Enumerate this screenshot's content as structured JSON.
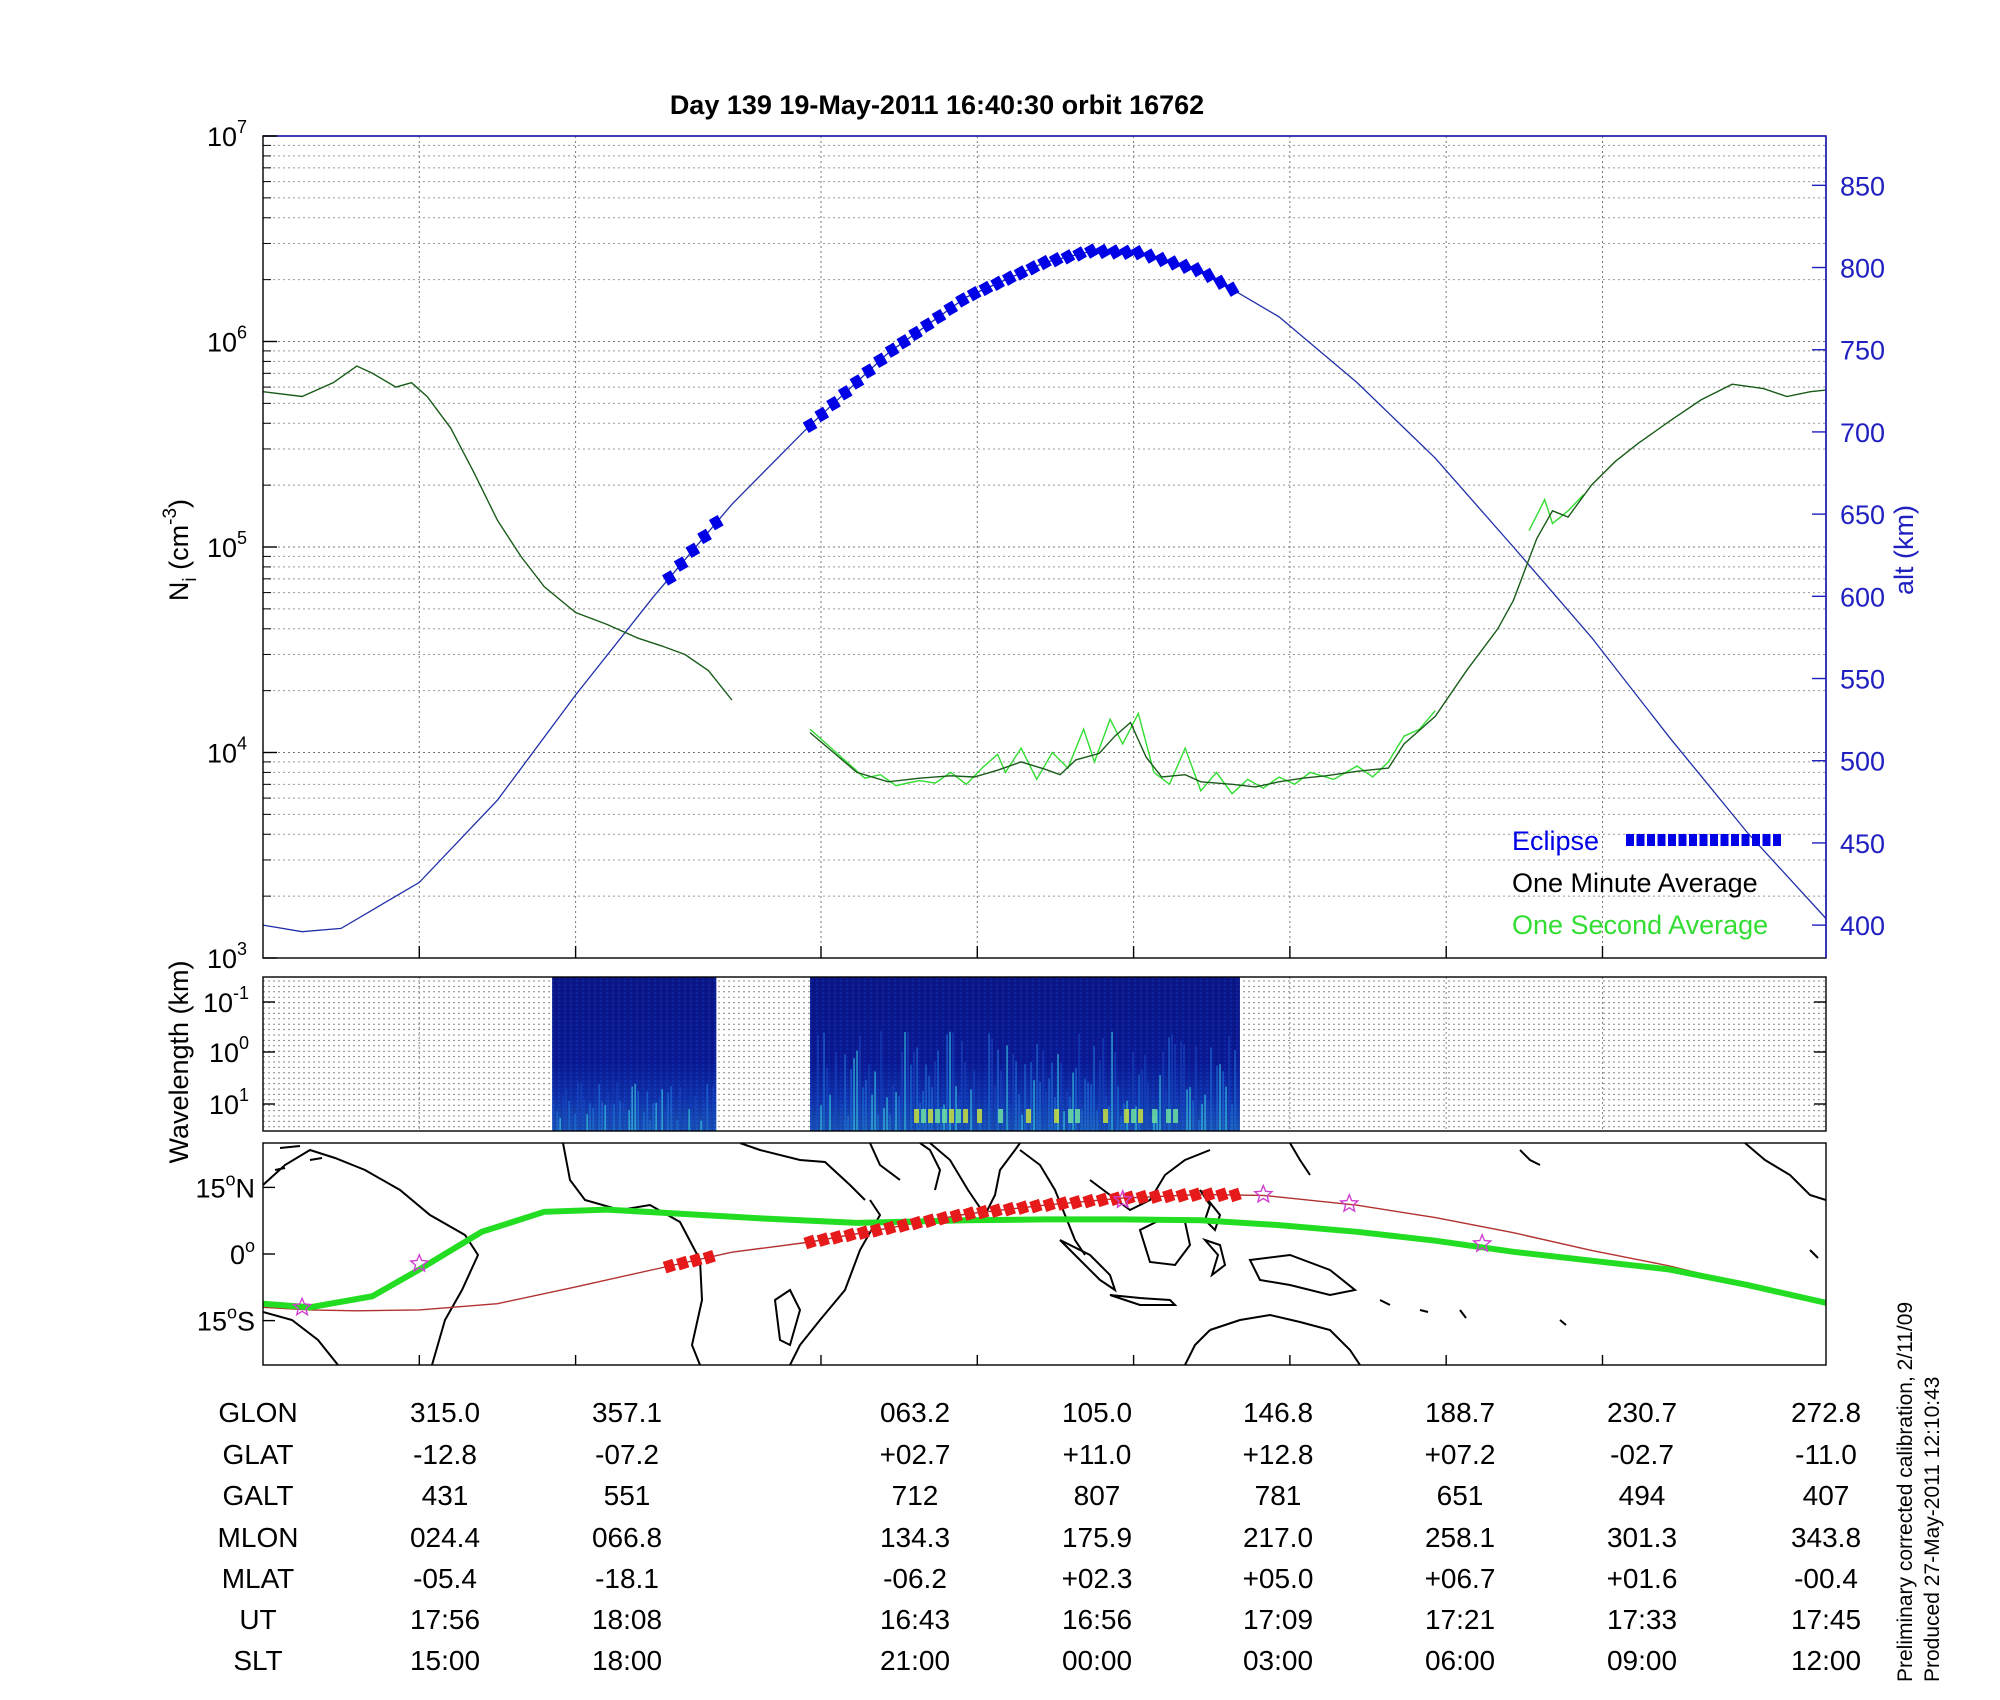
{
  "title": "Day 139  19-May-2011 16:40:30   orbit 16762",
  "colors": {
    "eclipse": "#0000e6",
    "altitude_line": "#1f2fa8",
    "one_minute": "#1a5c1a",
    "one_second": "#33dd33",
    "ground_track": "#b23030",
    "magnetic_track": "#22dd22",
    "eclipse_track": "#e61a1a",
    "right_axis": "#2020c0"
  },
  "chart_data": [
    {
      "type": "line",
      "panel": "density",
      "ylabel": "N_i (cm^-3)",
      "ylabel_main": "N",
      "ylabel_sub": "i",
      "ylabel_unit": " (cm",
      "ylabel_exp": "-3",
      "ylabel_close": ")",
      "yscale": "log",
      "ylim": [
        1000,
        10000000
      ],
      "yticks": [
        {
          "base": "10",
          "exp": "7"
        },
        {
          "base": "10",
          "exp": "6"
        },
        {
          "base": "10",
          "exp": "5"
        },
        {
          "base": "10",
          "exp": "4"
        },
        {
          "base": "10",
          "exp": "3"
        }
      ],
      "y2label": "alt (km)",
      "y2lim": [
        380,
        880
      ],
      "y2ticks": [
        "850",
        "800",
        "750",
        "700",
        "650",
        "600",
        "550",
        "500",
        "450",
        "400"
      ],
      "legend": [
        "Eclipse",
        "One Minute Average",
        "One Second Average"
      ],
      "legend_position": "bottom-right",
      "x_index_range": [
        0,
        8.5
      ],
      "series_one_minute": {
        "name": "One Minute Average",
        "segments": [
          [
            [
              0,
              570000
            ],
            [
              0.25,
              540000
            ],
            [
              0.45,
              630000
            ],
            [
              0.6,
              760000
            ],
            [
              0.7,
              700000
            ],
            [
              0.85,
              600000
            ],
            [
              0.95,
              630000
            ],
            [
              1.05,
              540000
            ],
            [
              1.2,
              380000
            ],
            [
              1.35,
              230000
            ],
            [
              1.5,
              135000
            ],
            [
              1.65,
              90000
            ],
            [
              1.8,
              64000
            ],
            [
              2.0,
              48000
            ],
            [
              2.2,
              42000
            ],
            [
              2.4,
              36000
            ],
            [
              2.55,
              33000
            ],
            [
              2.7,
              30000
            ],
            [
              2.85,
              25000
            ],
            [
              3.0,
              18000
            ]
          ],
          [
            [
              3.5,
              12500
            ],
            [
              3.65,
              10000
            ],
            [
              3.8,
              8000
            ],
            [
              4.0,
              7200
            ],
            [
              4.2,
              7500
            ],
            [
              4.4,
              7700
            ],
            [
              4.55,
              7600
            ],
            [
              4.7,
              8200
            ],
            [
              4.85,
              9000
            ],
            [
              5.0,
              8300
            ],
            [
              5.1,
              7800
            ],
            [
              5.2,
              9200
            ],
            [
              5.35,
              9900
            ],
            [
              5.45,
              12000
            ],
            [
              5.55,
              14000
            ],
            [
              5.65,
              9500
            ],
            [
              5.75,
              7600
            ],
            [
              5.9,
              7800
            ],
            [
              6.0,
              7200
            ],
            [
              6.2,
              7000
            ],
            [
              6.35,
              6800
            ],
            [
              6.5,
              7200
            ],
            [
              6.65,
              7500
            ],
            [
              6.8,
              7700
            ],
            [
              7.0,
              8100
            ],
            [
              7.2,
              8400
            ],
            [
              7.3,
              11000
            ],
            [
              7.5,
              15000
            ],
            [
              7.7,
              25000
            ],
            [
              7.9,
              40000
            ],
            [
              8.0,
              55000
            ],
            [
              8.15,
              110000
            ],
            [
              8.25,
              150000
            ],
            [
              8.35,
              140000
            ],
            [
              8.5,
              200000
            ],
            [
              8.65,
              260000
            ],
            [
              8.8,
              320000
            ],
            [
              9.0,
              410000
            ],
            [
              9.2,
              520000
            ],
            [
              9.4,
              620000
            ],
            [
              9.6,
              590000
            ],
            [
              9.75,
              540000
            ],
            [
              9.9,
              570000
            ],
            [
              10.0,
              580000
            ]
          ]
        ]
      },
      "series_one_second": {
        "name": "One Second Average",
        "segments": [
          [
            [
              3.5,
              13000
            ],
            [
              3.7,
              9500
            ],
            [
              3.85,
              7500
            ],
            [
              3.95,
              7800
            ],
            [
              4.05,
              6900
            ],
            [
              4.2,
              7300
            ],
            [
              4.3,
              7100
            ],
            [
              4.4,
              8000
            ],
            [
              4.5,
              7000
            ],
            [
              4.6,
              8400
            ],
            [
              4.7,
              9800
            ],
            [
              4.75,
              8000
            ],
            [
              4.85,
              10500
            ],
            [
              4.95,
              7400
            ],
            [
              5.05,
              10000
            ],
            [
              5.15,
              8400
            ],
            [
              5.25,
              13000
            ],
            [
              5.32,
              9000
            ],
            [
              5.42,
              14500
            ],
            [
              5.5,
              11000
            ],
            [
              5.6,
              15500
            ],
            [
              5.7,
              8000
            ],
            [
              5.8,
              7000
            ],
            [
              5.9,
              10500
            ],
            [
              6.0,
              6500
            ],
            [
              6.1,
              8000
            ],
            [
              6.2,
              6300
            ],
            [
              6.3,
              7400
            ],
            [
              6.4,
              6700
            ],
            [
              6.5,
              7600
            ],
            [
              6.6,
              7000
            ],
            [
              6.7,
              8000
            ],
            [
              6.85,
              7400
            ],
            [
              7.0,
              8600
            ],
            [
              7.1,
              7600
            ],
            [
              7.2,
              9000
            ],
            [
              7.3,
              12000
            ],
            [
              7.4,
              13000
            ],
            [
              7.5,
              16000
            ]
          ],
          [
            [
              8.1,
              120000
            ],
            [
              8.2,
              170000
            ],
            [
              8.25,
              130000
            ],
            [
              8.35,
              150000
            ],
            [
              8.45,
              180000
            ]
          ]
        ]
      },
      "series_altitude": {
        "name": "alt (km)",
        "points": [
          [
            0,
            400
          ],
          [
            0.25,
            396
          ],
          [
            0.5,
            398
          ],
          [
            1.0,
            426
          ],
          [
            1.5,
            476
          ],
          [
            2.0,
            540
          ],
          [
            2.5,
            600
          ],
          [
            3.0,
            656
          ],
          [
            3.5,
            704
          ],
          [
            4.0,
            748
          ],
          [
            4.5,
            782
          ],
          [
            5.0,
            803
          ],
          [
            5.3,
            810
          ],
          [
            5.6,
            809
          ],
          [
            6.0,
            798
          ],
          [
            6.5,
            770
          ],
          [
            7.0,
            730
          ],
          [
            7.5,
            684
          ],
          [
            8.0,
            630
          ],
          [
            8.5,
            575
          ],
          [
            9.0,
            514
          ],
          [
            9.5,
            456
          ],
          [
            10.0,
            404
          ]
        ]
      },
      "series_eclipse": {
        "name": "Eclipse",
        "segments": [
          [
            2.6,
            2.9
          ],
          [
            3.5,
            6.25
          ]
        ]
      }
    },
    {
      "type": "heatmap",
      "panel": "spectrogram",
      "ylabel": "Wavelength (km)",
      "yticks": [
        {
          "base": "10",
          "exp": "-1"
        },
        {
          "base": "10",
          "exp": "0"
        },
        {
          "base": "10",
          "exp": "1"
        }
      ],
      "data_segments": [
        [
          1.85,
          2.9
        ],
        [
          3.5,
          6.25
        ]
      ]
    },
    {
      "type": "line",
      "panel": "map",
      "yticks": [
        "15°N",
        "0°",
        "15°S"
      ],
      "ytick_parts": [
        {
          "num": "15",
          "deg": "o",
          "hemi": "N"
        },
        {
          "num": "0",
          "deg": "o",
          "hemi": ""
        },
        {
          "num": "15",
          "deg": "o",
          "hemi": "S"
        }
      ],
      "ylim": [
        -25,
        25
      ],
      "geographic_track": [
        [
          0,
          -12
        ],
        [
          0.3,
          -12.6
        ],
        [
          0.6,
          -12.8
        ],
        [
          1.0,
          -12.6
        ],
        [
          1.5,
          -11.2
        ],
        [
          2.0,
          -7.4
        ],
        [
          2.5,
          -3.5
        ],
        [
          3.0,
          0.4
        ],
        [
          3.5,
          2.7
        ],
        [
          4.0,
          5.8
        ],
        [
          4.5,
          9.0
        ],
        [
          5.0,
          11.0
        ],
        [
          5.5,
          12.6
        ],
        [
          6.0,
          13.4
        ],
        [
          6.4,
          13.2
        ],
        [
          7.0,
          11.0
        ],
        [
          7.5,
          8.2
        ],
        [
          8.0,
          4.8
        ],
        [
          8.5,
          0.8
        ],
        [
          9.0,
          -2.7
        ],
        [
          9.5,
          -7.0
        ],
        [
          10.0,
          -11.0
        ]
      ],
      "magnetic_track": [
        [
          0,
          -11.2
        ],
        [
          0.3,
          -12.0
        ],
        [
          0.7,
          -9.5
        ],
        [
          1.0,
          -3.5
        ],
        [
          1.4,
          5.0
        ],
        [
          1.8,
          9.5
        ],
        [
          2.2,
          10.0
        ],
        [
          2.7,
          9.0
        ],
        [
          3.2,
          8.0
        ],
        [
          3.8,
          7.0
        ],
        [
          4.5,
          7.6
        ],
        [
          5.0,
          7.8
        ],
        [
          5.5,
          7.8
        ],
        [
          6.0,
          7.6
        ],
        [
          6.5,
          6.5
        ],
        [
          7.0,
          5.0
        ],
        [
          7.5,
          3.0
        ],
        [
          8.0,
          0.5
        ],
        [
          8.5,
          -1.5
        ],
        [
          9.0,
          -3.5
        ],
        [
          9.5,
          -7.0
        ],
        [
          10.0,
          -11.0
        ]
      ],
      "eclipse_track_segments": [
        [
          2.6,
          2.9
        ],
        [
          3.5,
          6.25
        ]
      ],
      "markers": [
        [
          0.25,
          -12.0
        ],
        [
          1.0,
          -2.2
        ],
        [
          5.5,
          12.2
        ],
        [
          6.4,
          13.4
        ],
        [
          6.95,
          11.3
        ],
        [
          7.8,
          2.3
        ]
      ]
    }
  ],
  "table": {
    "row_labels": [
      "GLON",
      "GLAT",
      "GALT",
      "MLON",
      "MLAT",
      "UT",
      "SLT"
    ],
    "columns": [
      [
        "315.0",
        "-12.8",
        "431",
        "024.4",
        "-05.4",
        "17:56",
        "15:00"
      ],
      [
        "357.1",
        "-07.2",
        "551",
        "066.8",
        "-18.1",
        "18:08",
        "18:00"
      ],
      [
        "063.2",
        "+02.7",
        "712",
        "134.3",
        "-06.2",
        "16:43",
        "21:00"
      ],
      [
        "105.0",
        "+11.0",
        "807",
        "175.9",
        "+02.3",
        "16:56",
        "00:00"
      ],
      [
        "146.8",
        "+12.8",
        "781",
        "217.0",
        "+05.0",
        "17:09",
        "03:00"
      ],
      [
        "188.7",
        "+07.2",
        "651",
        "258.1",
        "+06.7",
        "17:21",
        "06:00"
      ],
      [
        "230.7",
        "-02.7",
        "494",
        "301.3",
        "+01.6",
        "17:33",
        "09:00"
      ],
      [
        "272.8",
        "-11.0",
        "407",
        "343.8",
        "-00.4",
        "17:45",
        "12:00"
      ]
    ]
  },
  "side_note": {
    "line1": "Preliminary corrected calibration, 2/11/09",
    "line2": "Produced 27-May-2011 12:10:43"
  }
}
